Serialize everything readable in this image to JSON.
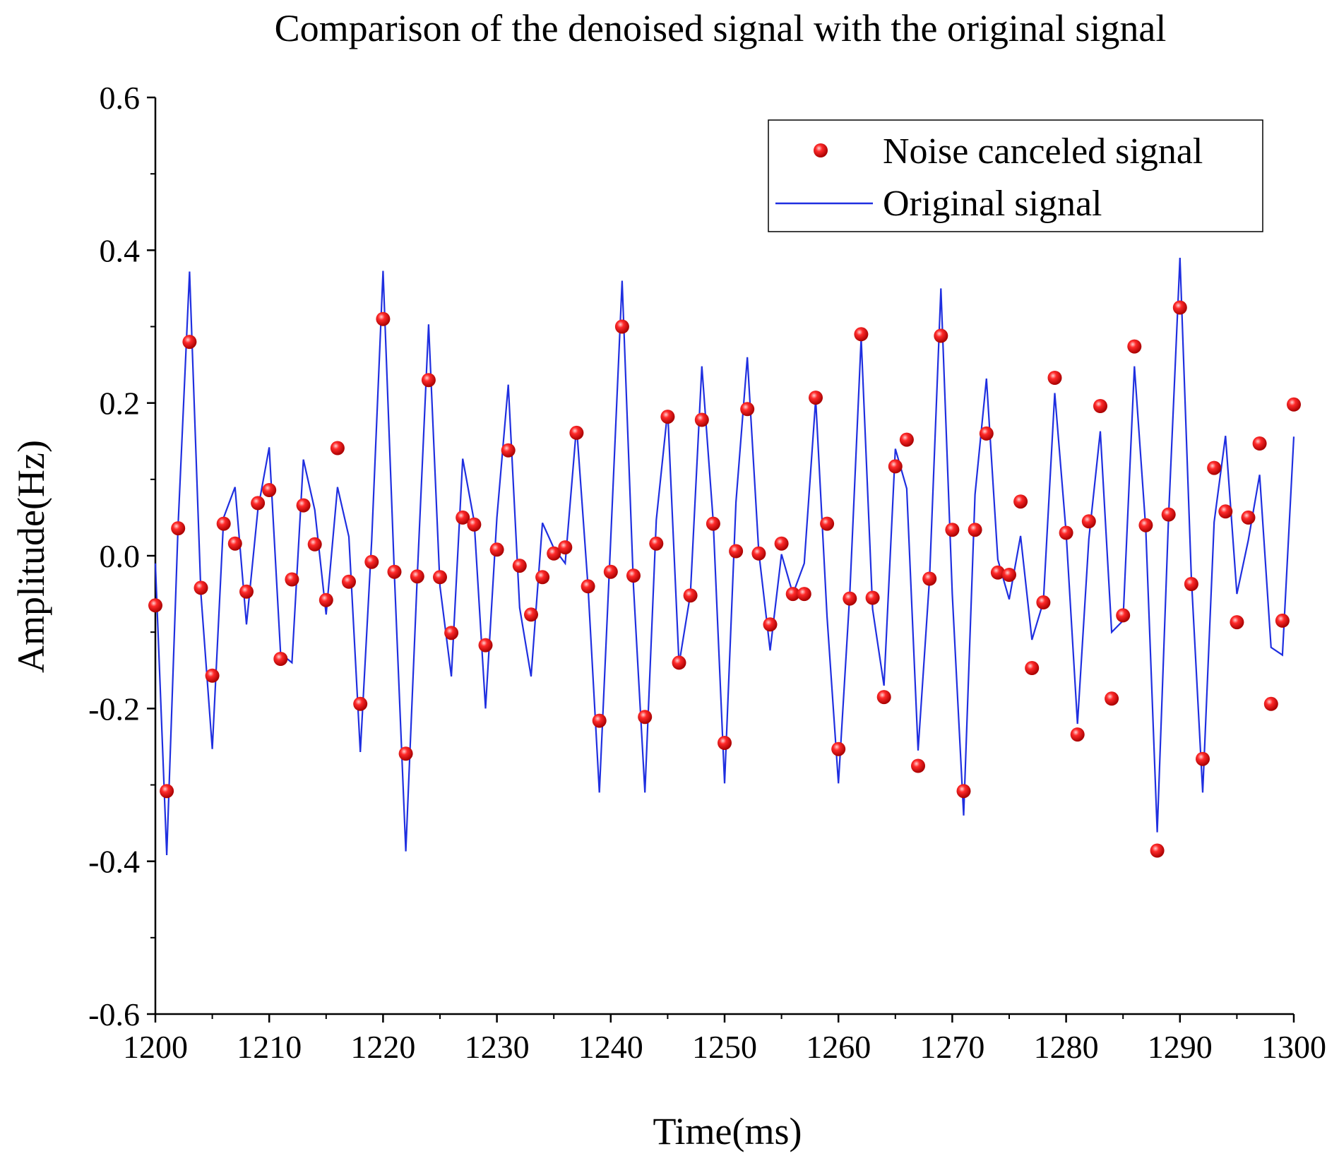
{
  "chart_data": {
    "type": "line",
    "title": "Comparison of the denoised signal with the original signal",
    "xlabel": "Time(ms)",
    "ylabel": "Amplitude(Hz)",
    "xlim": [
      1200,
      1300
    ],
    "ylim": [
      -0.6,
      0.6
    ],
    "grid": false,
    "legend_position": "top-right",
    "x_ticks": [
      1200,
      1210,
      1220,
      1230,
      1240,
      1250,
      1260,
      1270,
      1280,
      1290,
      1300
    ],
    "x_tick_labels": [
      "1200",
      "1210",
      "1220",
      "1230",
      "1240",
      "1250",
      "1260",
      "1270",
      "1280",
      "1290",
      "1300"
    ],
    "y_ticks": [
      -0.6,
      -0.4,
      -0.2,
      0.0,
      0.2,
      0.4,
      0.6
    ],
    "y_tick_labels": [
      "-0.6",
      "-0.4",
      "-0.2",
      "0.0",
      "0.2",
      "0.4",
      "0.6"
    ],
    "x": [
      1200,
      1201,
      1202,
      1203,
      1204,
      1205,
      1206,
      1207,
      1208,
      1209,
      1210,
      1211,
      1212,
      1213,
      1214,
      1215,
      1216,
      1217,
      1218,
      1219,
      1220,
      1221,
      1222,
      1223,
      1224,
      1225,
      1226,
      1227,
      1228,
      1229,
      1230,
      1231,
      1232,
      1233,
      1234,
      1235,
      1236,
      1237,
      1238,
      1239,
      1240,
      1241,
      1242,
      1243,
      1244,
      1245,
      1246,
      1247,
      1248,
      1249,
      1250,
      1251,
      1252,
      1253,
      1254,
      1255,
      1256,
      1257,
      1258,
      1259,
      1260,
      1261,
      1262,
      1263,
      1264,
      1265,
      1266,
      1267,
      1268,
      1269,
      1270,
      1271,
      1272,
      1273,
      1274,
      1275,
      1276,
      1277,
      1278,
      1279,
      1280,
      1281,
      1282,
      1283,
      1284,
      1285,
      1286,
      1287,
      1288,
      1289,
      1290,
      1291,
      1292,
      1293,
      1294,
      1295,
      1296,
      1297,
      1298,
      1299,
      1300
    ],
    "series": [
      {
        "name": "Noise canceled signal",
        "style": "scatter",
        "color": "#e00000",
        "values": [
          -0.065,
          -0.308,
          0.036,
          0.28,
          -0.042,
          -0.157,
          0.042,
          0.016,
          -0.047,
          0.069,
          0.086,
          -0.135,
          -0.031,
          0.066,
          0.015,
          -0.058,
          0.141,
          -0.034,
          -0.194,
          -0.008,
          0.31,
          -0.021,
          -0.259,
          -0.027,
          0.23,
          -0.028,
          -0.101,
          0.05,
          0.041,
          -0.117,
          0.008,
          0.138,
          -0.013,
          -0.077,
          -0.028,
          0.003,
          0.011,
          0.161,
          -0.04,
          -0.216,
          -0.021,
          0.3,
          -0.026,
          -0.211,
          0.016,
          0.182,
          -0.14,
          -0.052,
          0.178,
          0.042,
          -0.245,
          0.006,
          0.192,
          0.003,
          -0.09,
          0.016,
          -0.05,
          -0.05,
          0.207,
          0.042,
          -0.253,
          -0.056,
          0.29,
          -0.055,
          -0.185,
          0.117,
          0.152,
          -0.275,
          -0.03,
          0.288,
          0.034,
          -0.308,
          0.034,
          0.16,
          -0.022,
          -0.025,
          0.071,
          -0.147,
          -0.061,
          0.233,
          0.03,
          -0.234,
          0.045,
          0.196,
          -0.187,
          -0.078,
          0.274,
          0.04,
          -0.386,
          0.054,
          0.325,
          -0.037,
          -0.266,
          0.115,
          0.058,
          -0.087,
          0.05,
          0.147,
          -0.194,
          -0.085,
          0.198
        ]
      },
      {
        "name": "Original signal",
        "style": "line",
        "color": "#1f2fe0",
        "values": [
          -0.01,
          -0.392,
          0.04,
          0.372,
          -0.05,
          -0.253,
          0.05,
          0.09,
          -0.09,
          0.06,
          0.142,
          -0.128,
          -0.14,
          0.126,
          0.06,
          -0.077,
          0.09,
          0.025,
          -0.257,
          0.02,
          0.373,
          -0.026,
          -0.387,
          -0.028,
          0.303,
          -0.04,
          -0.158,
          0.127,
          0.045,
          -0.2,
          0.05,
          0.224,
          -0.068,
          -0.158,
          0.043,
          0.01,
          -0.01,
          0.17,
          -0.04,
          -0.31,
          0.022,
          0.36,
          -0.04,
          -0.31,
          0.047,
          0.19,
          -0.142,
          -0.05,
          0.248,
          0.045,
          -0.298,
          0.07,
          0.26,
          0.005,
          -0.124,
          0.002,
          -0.05,
          -0.01,
          0.205,
          -0.08,
          -0.298,
          -0.05,
          0.285,
          -0.07,
          -0.17,
          0.14,
          0.088,
          -0.255,
          -0.03,
          0.35,
          -0.05,
          -0.34,
          0.08,
          0.232,
          -0.005,
          -0.057,
          0.026,
          -0.11,
          -0.06,
          0.213,
          0.03,
          -0.22,
          0.022,
          0.163,
          -0.1,
          -0.085,
          0.248,
          0.035,
          -0.362,
          0.052,
          0.39,
          -0.028,
          -0.31,
          0.044,
          0.157,
          -0.05,
          0.02,
          0.106,
          -0.12,
          -0.13,
          0.156
        ]
      }
    ],
    "legend": [
      "Noise canceled signal",
      "Original signal"
    ]
  }
}
